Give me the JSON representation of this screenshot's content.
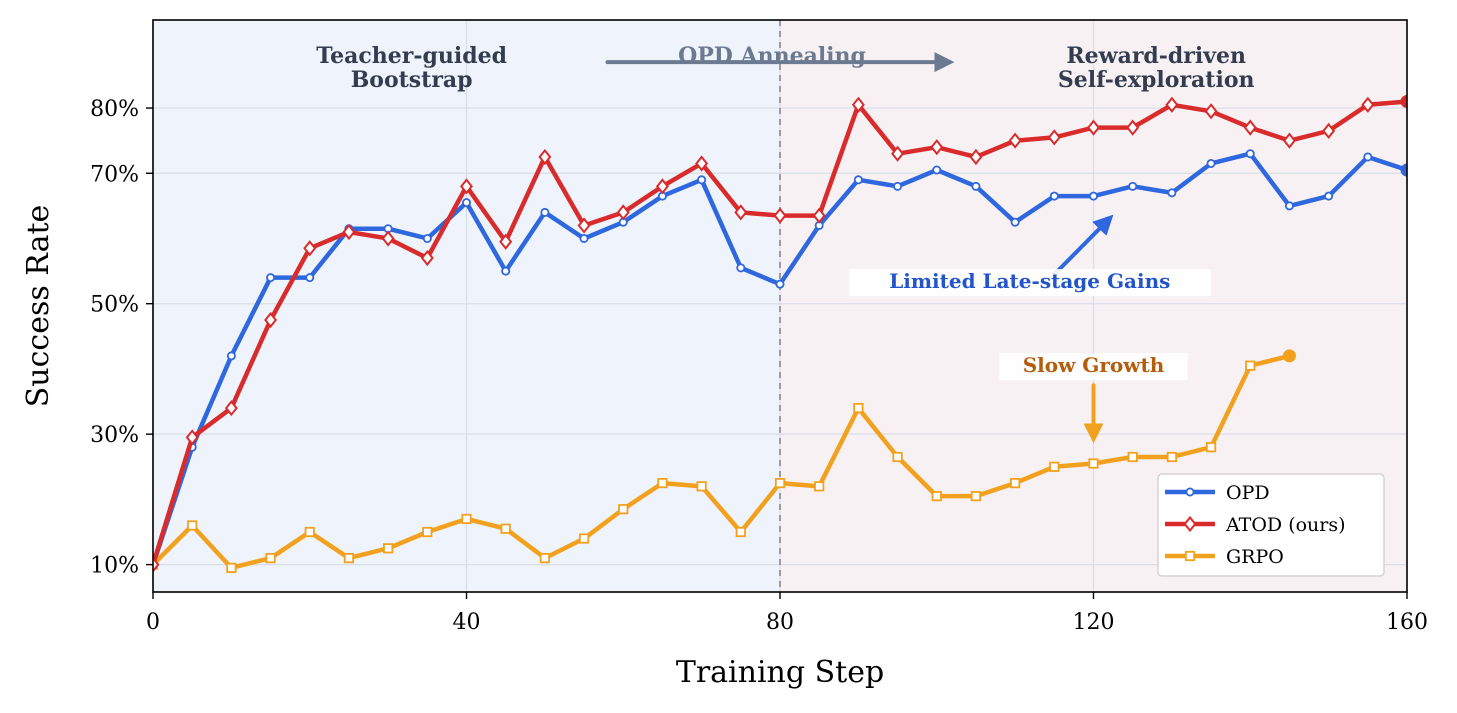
{
  "chart_data": {
    "type": "line",
    "xlabel": "Training Step",
    "ylabel": "Success Rate",
    "xlim": [
      0,
      160
    ],
    "ylim": [
      5.8,
      93.5
    ],
    "xticks": [
      0,
      40,
      80,
      120,
      160
    ],
    "xtick_labels": [
      "0",
      "40",
      "80",
      "120",
      "160"
    ],
    "yticks": [
      10,
      30,
      50,
      70,
      80
    ],
    "ytick_labels": [
      "10%",
      "30%",
      "50%",
      "70%",
      "80%"
    ],
    "grid": true,
    "legend_position": "lower-right",
    "phase_boundary": 80,
    "phases": [
      {
        "label_line1": "Teacher-guided",
        "label_line2": "Bootstrap",
        "x_start": 0,
        "x_end": 80,
        "color": "#eef3fc"
      },
      {
        "label_line1": "Reward-driven",
        "label_line2": "Self-exploration",
        "x_start": 80,
        "x_end": 160,
        "color": "#f8f1f4"
      }
    ],
    "transition": {
      "label": "OPD Annealing",
      "x_from": 58,
      "x_to": 102,
      "y": 87.5
    },
    "annotations": [
      {
        "text": "Limited Late-stage Gains",
        "color": "#2255cc",
        "x": 112,
        "y": 52.4,
        "arrow_from": [
          115,
          54.5
        ],
        "arrow_to": [
          122,
          63
        ]
      },
      {
        "text": "Slow Growth",
        "color": "#b35e0c",
        "x": 120,
        "y": 39.5,
        "arrow_from": [
          120,
          37.5
        ],
        "arrow_to": [
          120,
          29.5
        ]
      }
    ],
    "x": [
      0,
      5,
      10,
      15,
      20,
      25,
      30,
      35,
      40,
      45,
      50,
      55,
      60,
      65,
      70,
      75,
      80,
      85,
      90,
      95,
      100,
      105,
      110,
      115,
      120,
      125,
      130,
      135,
      140,
      145,
      150,
      155,
      160
    ],
    "series": [
      {
        "name": "OPD",
        "color": "#2f67de",
        "marker": "circle",
        "values": [
          10,
          28,
          42,
          54,
          54,
          61.5,
          61.5,
          60,
          65.5,
          55,
          64,
          60,
          62.5,
          66.5,
          69,
          55.5,
          53,
          62,
          69,
          68,
          70.5,
          68,
          62.5,
          66.5,
          66.5,
          68,
          67,
          71.5,
          73,
          65,
          66.5,
          72.5,
          70.5
        ]
      },
      {
        "name": "ATOD (ours)",
        "color": "#d92b2b",
        "marker": "diamond",
        "values": [
          10,
          29.5,
          34,
          47.5,
          58.5,
          61,
          60,
          57,
          68,
          59.5,
          72.5,
          62,
          64,
          68,
          71.5,
          64,
          63.5,
          63.5,
          80.5,
          73,
          74,
          72.5,
          75,
          75.5,
          77,
          77,
          80.5,
          79.5,
          77,
          75,
          76.5,
          80.5,
          81
        ]
      },
      {
        "name": "GRPO",
        "color": "#f2a11e",
        "marker": "square",
        "values": [
          10,
          16,
          9.5,
          11,
          15,
          11,
          12.5,
          15,
          17,
          15.5,
          11,
          14,
          18.5,
          22.5,
          22,
          15,
          22.5,
          22,
          34,
          26.5,
          20.5,
          20.5,
          22.5,
          25,
          25.5,
          26.5,
          26.5,
          28,
          40.5,
          42,
          null,
          null,
          null
        ]
      }
    ]
  }
}
